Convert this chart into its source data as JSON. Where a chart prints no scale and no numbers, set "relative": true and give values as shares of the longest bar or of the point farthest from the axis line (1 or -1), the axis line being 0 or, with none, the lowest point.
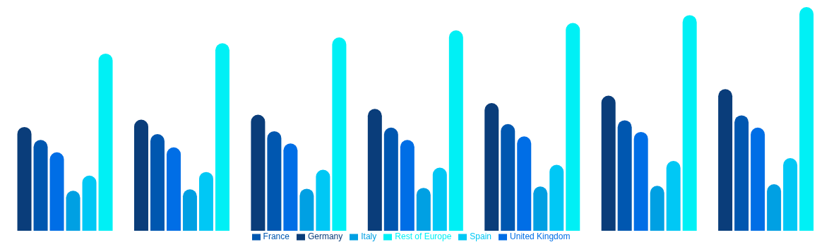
{
  "chart_data": {
    "type": "bar",
    "relative": true,
    "legend": "bottom",
    "categories": [
      null,
      null,
      null,
      null,
      null,
      null,
      null
    ],
    "series": [
      {
        "name": "Germany",
        "color": "#0a3d7a",
        "values": [
          0.464,
          0.497,
          0.519,
          0.545,
          0.571,
          0.604,
          0.633
        ]
      },
      {
        "name": "France",
        "color": "#0057b0",
        "values": [
          0.406,
          0.432,
          0.445,
          0.461,
          0.477,
          0.494,
          0.516
        ]
      },
      {
        "name": "United Kingdom",
        "color": "#006ee6",
        "values": [
          0.351,
          0.373,
          0.39,
          0.406,
          0.422,
          0.442,
          0.461
        ]
      },
      {
        "name": "Italy",
        "color": "#00a0e3",
        "values": [
          0.179,
          0.185,
          0.188,
          0.192,
          0.198,
          0.201,
          0.208
        ]
      },
      {
        "name": "Spain",
        "color": "#00c8f5",
        "values": [
          0.247,
          0.263,
          0.273,
          0.282,
          0.295,
          0.312,
          0.325
        ]
      },
      {
        "name": "Rest of Europe",
        "color": "#00f0f5",
        "values": [
          0.792,
          0.838,
          0.864,
          0.896,
          0.929,
          0.964,
          1
        ]
      }
    ]
  }
}
